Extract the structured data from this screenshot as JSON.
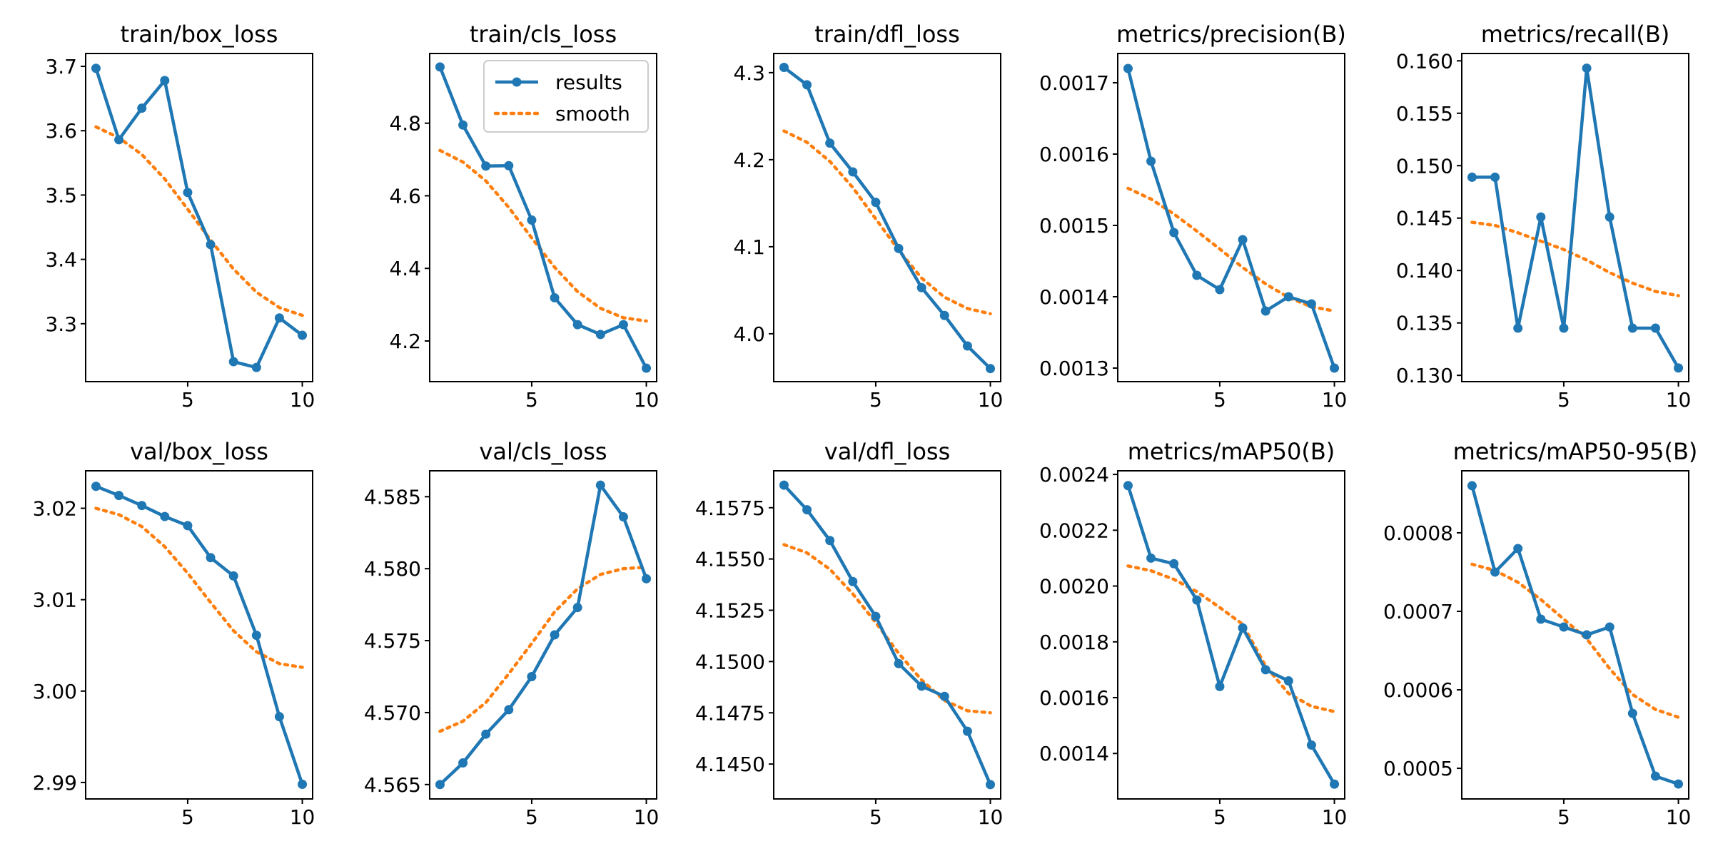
{
  "legend": {
    "results_label": "results",
    "smooth_label": "smooth"
  },
  "colors": {
    "results": "#1f77b4",
    "smooth": "#ff7f0e"
  },
  "chart_data": [
    {
      "type": "line",
      "title": "train/box_loss",
      "x": [
        1,
        2,
        3,
        4,
        5,
        6,
        7,
        8,
        9,
        10
      ],
      "series": [
        {
          "name": "results",
          "values": [
            3.697,
            3.586,
            3.635,
            3.678,
            3.504,
            3.423,
            3.241,
            3.232,
            3.309,
            3.282
          ]
        },
        {
          "name": "smooth",
          "values": [
            3.606,
            3.589,
            3.563,
            3.525,
            3.478,
            3.43,
            3.385,
            3.349,
            3.325,
            3.313
          ]
        }
      ],
      "xticks": [
        5,
        10
      ],
      "yticks": [
        3.3,
        3.4,
        3.5,
        3.6,
        3.7
      ],
      "xlim": [
        0.55,
        10.45
      ],
      "ylim": [
        3.21,
        3.72
      ]
    },
    {
      "type": "line",
      "title": "train/cls_loss",
      "x": [
        1,
        2,
        3,
        4,
        5,
        6,
        7,
        8,
        9,
        10
      ],
      "series": [
        {
          "name": "results",
          "values": [
            4.955,
            4.795,
            4.682,
            4.683,
            4.533,
            4.319,
            4.245,
            4.218,
            4.245,
            4.125
          ]
        },
        {
          "name": "smooth",
          "values": [
            4.725,
            4.693,
            4.641,
            4.568,
            4.484,
            4.403,
            4.336,
            4.29,
            4.264,
            4.255
          ]
        }
      ],
      "xticks": [
        5,
        10
      ],
      "yticks": [
        4.2,
        4.4,
        4.6,
        4.8
      ],
      "xlim": [
        0.55,
        10.45
      ],
      "ylim": [
        4.088,
        4.992
      ],
      "legend": true
    },
    {
      "type": "line",
      "title": "train/dfl_loss",
      "x": [
        1,
        2,
        3,
        4,
        5,
        6,
        7,
        8,
        9,
        10
      ],
      "series": [
        {
          "name": "results",
          "values": [
            4.306,
            4.286,
            4.219,
            4.186,
            4.151,
            4.098,
            4.053,
            4.021,
            3.986,
            3.96
          ]
        },
        {
          "name": "smooth",
          "values": [
            4.233,
            4.22,
            4.198,
            4.168,
            4.132,
            4.096,
            4.064,
            4.042,
            4.029,
            4.023
          ]
        }
      ],
      "xticks": [
        5,
        10
      ],
      "yticks": [
        4.0,
        4.1,
        4.2,
        4.3
      ],
      "xlim": [
        0.55,
        10.45
      ],
      "ylim": [
        3.945,
        4.322
      ]
    },
    {
      "type": "line",
      "title": "metrics/precision(B)",
      "x": [
        1,
        2,
        3,
        4,
        5,
        6,
        7,
        8,
        9,
        10
      ],
      "series": [
        {
          "name": "results",
          "values": [
            0.00172,
            0.00159,
            0.00149,
            0.00143,
            0.00141,
            0.00148,
            0.00138,
            0.0014,
            0.00139,
            0.0013
          ]
        },
        {
          "name": "smooth",
          "values": [
            0.001552,
            0.001537,
            0.001516,
            0.001492,
            0.001467,
            0.001441,
            0.001418,
            0.001399,
            0.001386,
            0.00138
          ]
        }
      ],
      "xticks": [
        5,
        10
      ],
      "yticks": [
        0.0013,
        0.0014,
        0.0015,
        0.0016,
        0.0017
      ],
      "xlim": [
        0.55,
        10.45
      ],
      "ylim": [
        0.001281,
        0.001741
      ]
    },
    {
      "type": "line",
      "title": "metrics/recall(B)",
      "x": [
        1,
        2,
        3,
        4,
        5,
        6,
        7,
        8,
        9,
        10
      ],
      "series": [
        {
          "name": "results",
          "values": [
            0.1489,
            0.1489,
            0.1345,
            0.1451,
            0.1345,
            0.1593,
            0.1451,
            0.1345,
            0.1345,
            0.1307
          ]
        },
        {
          "name": "smooth",
          "values": [
            0.1446,
            0.1443,
            0.1436,
            0.1428,
            0.142,
            0.141,
            0.1398,
            0.1388,
            0.138,
            0.1376
          ]
        }
      ],
      "xticks": [
        5,
        10
      ],
      "yticks": [
        0.13,
        0.135,
        0.14,
        0.145,
        0.15,
        0.155,
        0.16
      ],
      "xlim": [
        0.55,
        10.45
      ],
      "ylim": [
        0.1294,
        0.1607
      ]
    },
    {
      "type": "line",
      "title": "val/box_loss",
      "x": [
        1,
        2,
        3,
        4,
        5,
        6,
        7,
        8,
        9,
        10
      ],
      "series": [
        {
          "name": "results",
          "values": [
            3.0224,
            3.0214,
            3.0203,
            3.0191,
            3.0181,
            3.0146,
            3.0126,
            3.0061,
            2.9972,
            2.9898
          ]
        },
        {
          "name": "smooth",
          "values": [
            3.02,
            3.0193,
            3.018,
            3.0158,
            3.0129,
            3.0097,
            3.0066,
            3.0043,
            3.003,
            3.0026
          ]
        }
      ],
      "xticks": [
        5,
        10
      ],
      "yticks": [
        2.99,
        3.0,
        3.01,
        3.02
      ],
      "xlim": [
        0.55,
        10.45
      ],
      "ylim": [
        2.9882,
        3.0241
      ]
    },
    {
      "type": "line",
      "title": "val/cls_loss",
      "x": [
        1,
        2,
        3,
        4,
        5,
        6,
        7,
        8,
        9,
        10
      ],
      "series": [
        {
          "name": "results",
          "values": [
            4.565,
            4.5665,
            4.5685,
            4.5702,
            4.5725,
            4.5754,
            4.5773,
            4.5858,
            4.5836,
            4.5793
          ]
        },
        {
          "name": "smooth",
          "values": [
            4.5687,
            4.5694,
            4.5707,
            4.5727,
            4.5748,
            4.577,
            4.5786,
            4.5796,
            4.58,
            4.5801
          ]
        }
      ],
      "xticks": [
        5,
        10
      ],
      "yticks": [
        4.565,
        4.57,
        4.575,
        4.58,
        4.585
      ],
      "xlim": [
        0.55,
        10.45
      ],
      "ylim": [
        4.564,
        4.5868
      ]
    },
    {
      "type": "line",
      "title": "val/dfl_loss",
      "x": [
        1,
        2,
        3,
        4,
        5,
        6,
        7,
        8,
        9,
        10
      ],
      "series": [
        {
          "name": "results",
          "values": [
            4.1586,
            4.1574,
            4.1559,
            4.1539,
            4.1522,
            4.1499,
            4.1488,
            4.1483,
            4.1466,
            4.144
          ]
        },
        {
          "name": "smooth",
          "values": [
            4.1557,
            4.1553,
            4.1545,
            4.1533,
            4.1519,
            4.1504,
            4.1491,
            4.1481,
            4.1476,
            4.1475
          ]
        }
      ],
      "xticks": [
        5,
        10
      ],
      "yticks": [
        4.145,
        4.1475,
        4.15,
        4.1525,
        4.155,
        4.1575
      ],
      "xlim": [
        0.55,
        10.45
      ],
      "ylim": [
        4.1433,
        4.1593
      ]
    },
    {
      "type": "line",
      "title": "metrics/mAP50(B)",
      "x": [
        1,
        2,
        3,
        4,
        5,
        6,
        7,
        8,
        9,
        10
      ],
      "series": [
        {
          "name": "results",
          "values": [
            0.00236,
            0.0021,
            0.00208,
            0.00195,
            0.00164,
            0.00185,
            0.0017,
            0.00166,
            0.00143,
            0.00129
          ]
        },
        {
          "name": "smooth",
          "values": [
            0.002072,
            0.002055,
            0.002024,
            0.00198,
            0.001923,
            0.001863,
            0.001713,
            0.001615,
            0.001569,
            0.00155
          ]
        }
      ],
      "xticks": [
        5,
        10
      ],
      "yticks": [
        0.0014,
        0.0016,
        0.0018,
        0.002,
        0.0022,
        0.0024
      ],
      "xlim": [
        0.55,
        10.45
      ],
      "ylim": [
        0.001237,
        0.002413
      ]
    },
    {
      "type": "line",
      "title": "metrics/mAP50-95(B)",
      "x": [
        1,
        2,
        3,
        4,
        5,
        6,
        7,
        8,
        9,
        10
      ],
      "series": [
        {
          "name": "results",
          "values": [
            0.00086,
            0.00075,
            0.00078,
            0.00069,
            0.00068,
            0.00067,
            0.00068,
            0.00057,
            0.00049,
            0.00048
          ]
        },
        {
          "name": "smooth",
          "values": [
            0.00076,
            0.000752,
            0.000737,
            0.000715,
            0.00069,
            0.000665,
            0.000627,
            0.000594,
            0.000575,
            0.000565
          ]
        }
      ],
      "xticks": [
        5,
        10
      ],
      "yticks": [
        0.0005,
        0.0006,
        0.0007,
        0.0008
      ],
      "xlim": [
        0.55,
        10.45
      ],
      "ylim": [
        0.000461,
        0.000879
      ]
    }
  ]
}
